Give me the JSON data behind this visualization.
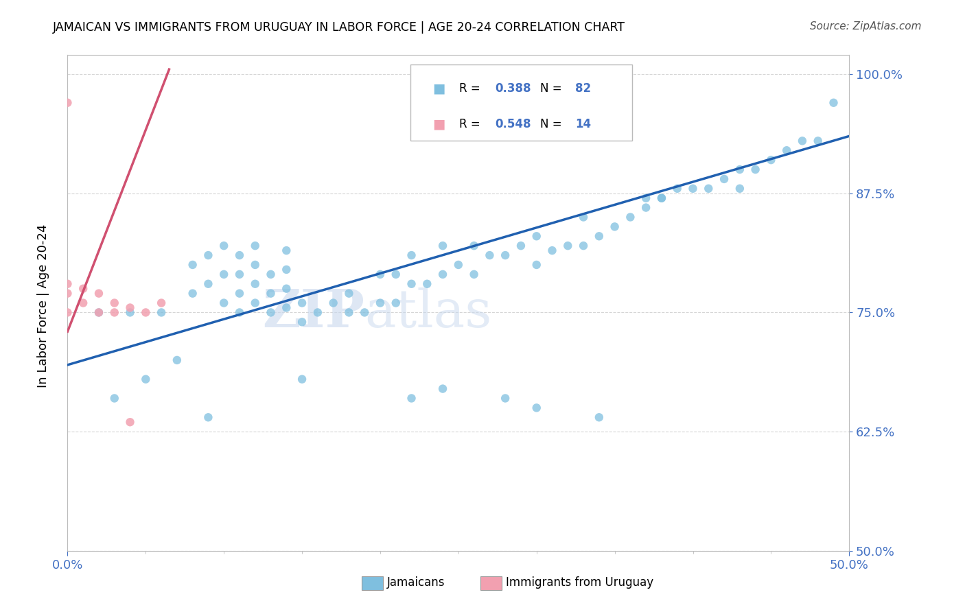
{
  "title": "JAMAICAN VS IMMIGRANTS FROM URUGUAY IN LABOR FORCE | AGE 20-24 CORRELATION CHART",
  "source": "Source: ZipAtlas.com",
  "ylabel_label": "In Labor Force | Age 20-24",
  "blue_color": "#7fbfdf",
  "pink_color": "#f2a0b0",
  "trend_blue": "#2060b0",
  "trend_pink": "#d05070",
  "watermark_zip": "ZIP",
  "watermark_atlas": "atlas",
  "blue_x": [
    0.02,
    0.04,
    0.06,
    0.08,
    0.08,
    0.09,
    0.09,
    0.1,
    0.1,
    0.1,
    0.11,
    0.11,
    0.11,
    0.11,
    0.12,
    0.12,
    0.12,
    0.12,
    0.13,
    0.13,
    0.13,
    0.14,
    0.14,
    0.14,
    0.14,
    0.15,
    0.15,
    0.15,
    0.16,
    0.17,
    0.18,
    0.18,
    0.19,
    0.2,
    0.2,
    0.21,
    0.21,
    0.22,
    0.22,
    0.23,
    0.24,
    0.24,
    0.25,
    0.26,
    0.26,
    0.27,
    0.28,
    0.29,
    0.3,
    0.3,
    0.31,
    0.32,
    0.33,
    0.33,
    0.34,
    0.35,
    0.36,
    0.37,
    0.37,
    0.38,
    0.39,
    0.4,
    0.41,
    0.42,
    0.43,
    0.44,
    0.45,
    0.46,
    0.47,
    0.48,
    0.03,
    0.05,
    0.07,
    0.09,
    0.22,
    0.24,
    0.28,
    0.3,
    0.34,
    0.38,
    0.43,
    0.49
  ],
  "blue_y": [
    0.75,
    0.75,
    0.75,
    0.77,
    0.8,
    0.78,
    0.81,
    0.76,
    0.79,
    0.82,
    0.75,
    0.77,
    0.79,
    0.81,
    0.76,
    0.78,
    0.8,
    0.82,
    0.75,
    0.77,
    0.79,
    0.755,
    0.775,
    0.795,
    0.815,
    0.68,
    0.74,
    0.76,
    0.75,
    0.76,
    0.75,
    0.77,
    0.75,
    0.76,
    0.79,
    0.76,
    0.79,
    0.78,
    0.81,
    0.78,
    0.79,
    0.82,
    0.8,
    0.79,
    0.82,
    0.81,
    0.81,
    0.82,
    0.8,
    0.83,
    0.815,
    0.82,
    0.82,
    0.85,
    0.83,
    0.84,
    0.85,
    0.86,
    0.87,
    0.87,
    0.88,
    0.88,
    0.88,
    0.89,
    0.9,
    0.9,
    0.91,
    0.92,
    0.93,
    0.93,
    0.66,
    0.68,
    0.7,
    0.64,
    0.66,
    0.67,
    0.66,
    0.65,
    0.64,
    0.87,
    0.88,
    0.97
  ],
  "pink_x": [
    0.0,
    0.0,
    0.0,
    0.01,
    0.01,
    0.02,
    0.02,
    0.03,
    0.03,
    0.04,
    0.04,
    0.05,
    0.06,
    0.0
  ],
  "pink_y": [
    0.75,
    0.77,
    0.78,
    0.76,
    0.775,
    0.75,
    0.77,
    0.75,
    0.76,
    0.755,
    0.635,
    0.75,
    0.76,
    0.97
  ],
  "blue_trend_x": [
    0.0,
    0.5
  ],
  "blue_trend_y": [
    0.695,
    0.935
  ],
  "pink_trend_x": [
    0.0,
    0.065
  ],
  "pink_trend_y": [
    0.73,
    1.005
  ],
  "xlim": [
    0.0,
    0.5
  ],
  "ylim": [
    0.5,
    1.02
  ],
  "xticks": [
    0.0,
    0.5
  ],
  "xtick_labels": [
    "0.0%",
    "50.0%"
  ],
  "yticks": [
    0.5,
    0.625,
    0.75,
    0.875,
    1.0
  ],
  "ytick_labels": [
    "50.0%",
    "62.5%",
    "75.0%",
    "87.5%",
    "100.0%"
  ],
  "tick_color": "#4472c4",
  "grid_color": "#cccccc",
  "legend_r_blue": "R = 0.388",
  "legend_n_blue": "N = 82",
  "legend_r_pink": "R = 0.548",
  "legend_n_pink": "N = 14",
  "legend_label_blue": "Jamaicans",
  "legend_label_pink": "Immigrants from Uruguay"
}
